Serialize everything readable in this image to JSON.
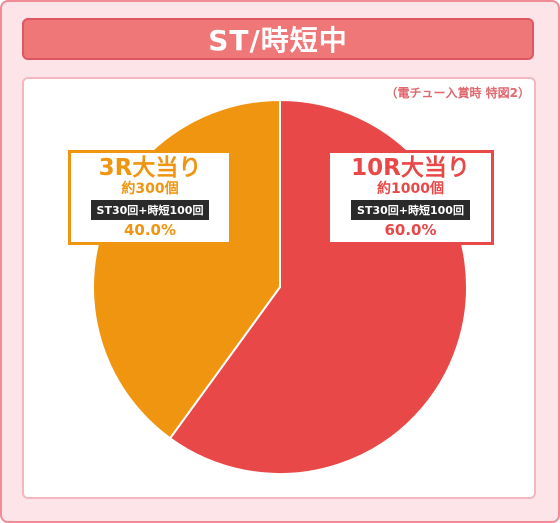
{
  "title": "ST/時短中",
  "note": "（電チュー入賞時 特図2）",
  "colors": {
    "title_bg": "#f07777",
    "frame_bg": "#fde4e8",
    "slice_10r": "#e84848",
    "slice_3r": "#f0950f"
  },
  "chart_data": {
    "type": "pie",
    "title": "ST/時短中",
    "subtitle": "（電チュー入賞時 特図2）",
    "slices": [
      {
        "label": "10R大当り",
        "payout": "約1000個",
        "detail": "ST30回+時短100回",
        "value": 60.0,
        "percent_label": "60.0%",
        "color": "#e84848"
      },
      {
        "label": "3R大当り",
        "payout": "約300個",
        "detail": "ST30回+時短100回",
        "value": 40.0,
        "percent_label": "40.0%",
        "color": "#f0950f"
      }
    ]
  }
}
